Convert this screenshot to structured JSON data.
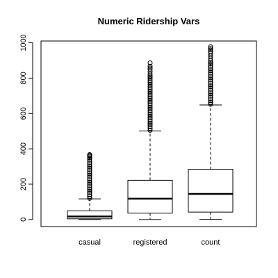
{
  "chart_data": {
    "type": "boxplot",
    "title": "Numeric Ridership Vars",
    "xlabel": "",
    "ylabel": "",
    "ylim": [
      -40,
      1010
    ],
    "yticks": [
      0,
      200,
      400,
      600,
      800,
      1000
    ],
    "grid": false,
    "categories": [
      "casual",
      "registered",
      "count"
    ],
    "series": [
      {
        "min": 0,
        "q1": 4,
        "median": 17,
        "q3": 49,
        "whisker_high": 117,
        "outliers": [
          120,
          130,
          140,
          150,
          160,
          170,
          180,
          190,
          200,
          210,
          220,
          230,
          240,
          250,
          260,
          270,
          280,
          290,
          300,
          310,
          320,
          330,
          340,
          350,
          357,
          362,
          367
        ]
      },
      {
        "min": 0,
        "q1": 36,
        "median": 118,
        "q3": 222,
        "whisker_high": 501,
        "outliers": [
          505,
          515,
          525,
          535,
          545,
          555,
          565,
          575,
          585,
          595,
          605,
          615,
          625,
          635,
          645,
          655,
          665,
          675,
          685,
          695,
          705,
          715,
          725,
          735,
          745,
          755,
          765,
          775,
          785,
          795,
          805,
          812,
          822,
          836,
          849,
          857,
          867,
          886
        ]
      },
      {
        "min": 1,
        "q1": 42,
        "median": 145,
        "q3": 284,
        "whisker_high": 648,
        "outliers": [
          652,
          662,
          672,
          682,
          692,
          702,
          712,
          722,
          732,
          742,
          752,
          762,
          772,
          782,
          792,
          802,
          812,
          822,
          832,
          842,
          852,
          862,
          872,
          882,
          890,
          900,
          912,
          925,
          938,
          950,
          960,
          968,
          977
        ]
      }
    ]
  }
}
